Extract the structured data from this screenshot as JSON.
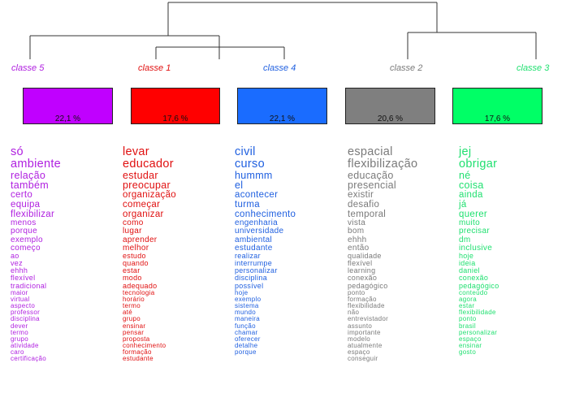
{
  "classes": [
    {
      "label": "classe 5",
      "percent": "22,1 %",
      "color": "#c000ff",
      "text_color": "#b020e0",
      "words": [
        "só",
        "ambiente",
        "relação",
        "também",
        "certo",
        "equipa",
        "flexibilizar",
        "menos",
        "porque",
        "exemplo",
        "começo",
        "ao",
        "vez",
        "ehhh",
        "flexível",
        "tradicional",
        "maior",
        "virtual",
        "aspecto",
        "professor",
        "disciplina",
        "dever",
        "termo",
        "grupo",
        "atividade",
        "caro",
        "certificação"
      ]
    },
    {
      "label": "classe 1",
      "percent": "17,6 %",
      "color": "#ff0000",
      "text_color": "#e01010",
      "words": [
        "levar",
        "educador",
        "estudar",
        "preocupar",
        "organização",
        "começar",
        "organizar",
        "como",
        "lugar",
        "aprender",
        "melhor",
        "estudo",
        "quando",
        "estar",
        "modo",
        "adequado",
        "tecnologia",
        "horário",
        "termo",
        "até",
        "grupo",
        "ensinar",
        "pensar",
        "proposta",
        "conhecimento",
        "formação",
        "estudante"
      ]
    },
    {
      "label": "classe 4",
      "percent": "22,1 %",
      "color": "#1a6cff",
      "text_color": "#2060e0",
      "words": [
        "civil",
        "curso",
        "hummm",
        "el",
        "acontecer",
        "turma",
        "conhecimento",
        "engenharia",
        "universidade",
        "ambiental",
        "estudante",
        "realizar",
        "interrumpe",
        "personalizar",
        "disciplina",
        "possível",
        "hoje",
        "exemplo",
        "sistema",
        "mundo",
        "maneira",
        "função",
        "chamar",
        "oferecer",
        "detalhe",
        "porque"
      ]
    },
    {
      "label": "classe 2",
      "percent": "20,6 %",
      "color": "#7f7f7f",
      "text_color": "#7a7a7a",
      "words": [
        "espacial",
        "flexibilização",
        "educação",
        "presencial",
        "existir",
        "desafio",
        "temporal",
        "vista",
        "bom",
        "ehhh",
        "então",
        "qualidade",
        "flexível",
        "learning",
        "conexão",
        "pedagógico",
        "ponto",
        "formação",
        "flexibilidade",
        "não",
        "entrevistador",
        "assunto",
        "importante",
        "modelo",
        "atualmente",
        "espaço",
        "conseguir"
      ]
    },
    {
      "label": "classe 3",
      "percent": "17,6 %",
      "color": "#00ff66",
      "text_color": "#20e070",
      "words": [
        "jej",
        "obrigar",
        "né",
        "coisa",
        "ainda",
        "já",
        "querer",
        "muito",
        "precisar",
        "dm",
        "inclusive",
        "hoje",
        "ideia",
        "daniel",
        "conexão",
        "pedagógico",
        "conteúdo",
        "agora",
        "estar",
        "flexibilidade",
        "ponto",
        "brasil",
        "personalizar",
        "espaço",
        "ensinar",
        "gosto"
      ]
    }
  ]
}
